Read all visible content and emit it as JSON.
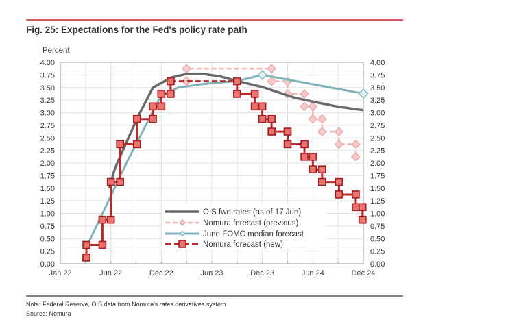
{
  "chart_data": {
    "type": "line",
    "title": "Fig. 25: Expectations for the Fed's policy rate path",
    "ylabel": "Percent",
    "xlabel": "",
    "x_unit": "months since Jan 22",
    "xlim": [
      0,
      36
    ],
    "ylim": [
      0,
      4
    ],
    "x_ticks": [
      {
        "x": 0,
        "label": "Jan 22"
      },
      {
        "x": 6,
        "label": "Jun 22"
      },
      {
        "x": 12,
        "label": "Dec 22"
      },
      {
        "x": 18,
        "label": "Jun 23"
      },
      {
        "x": 24,
        "label": "Dec 23"
      },
      {
        "x": 30,
        "label": "Jun 24"
      },
      {
        "x": 36,
        "label": "Dec 24"
      }
    ],
    "y_ticks": [
      "0.00",
      "0.25",
      "0.50",
      "0.75",
      "1.00",
      "1.25",
      "1.50",
      "1.75",
      "2.00",
      "2.25",
      "2.50",
      "2.75",
      "3.00",
      "3.25",
      "3.50",
      "3.75",
      "4.00"
    ],
    "grid": true,
    "legend_position": "lower-center",
    "series": [
      {
        "name": "OIS fwd rates (as of 17 Jun)",
        "style": "solid-line",
        "color": "#6b6b6b",
        "points": [
          [
            5.8,
            1.5
          ],
          [
            6.5,
            1.9
          ],
          [
            9.1,
            2.88
          ],
          [
            11,
            3.5
          ],
          [
            13.2,
            3.7
          ],
          [
            15,
            3.77
          ],
          [
            17,
            3.77
          ],
          [
            19,
            3.72
          ],
          [
            21,
            3.63
          ],
          [
            24,
            3.51
          ],
          [
            27.8,
            3.3
          ],
          [
            30,
            3.22
          ],
          [
            33,
            3.12
          ],
          [
            36,
            3.05
          ]
        ]
      },
      {
        "name": "Nomura forecast (previous)",
        "style": "dashed-step-diamond",
        "color": "#f0b4b4",
        "start": [
          15,
          3.625
        ],
        "steps": [
          [
            15,
            3.875
          ],
          [
            25.1,
            3.625
          ],
          [
            27,
            3.375
          ],
          [
            29,
            3.125
          ],
          [
            30,
            2.875
          ],
          [
            31.1,
            2.625
          ],
          [
            33.1,
            2.375
          ],
          [
            35.1,
            2.125
          ]
        ]
      },
      {
        "name": "June FOMC median forecast",
        "style": "solid-line-diamond",
        "color": "#7fb3b8",
        "points": [
          [
            3.3,
            0.4
          ],
          [
            8,
            2.05
          ],
          [
            12,
            3.35
          ],
          [
            14,
            3.5
          ],
          [
            17,
            3.57
          ],
          [
            21,
            3.63
          ],
          [
            24,
            3.75
          ],
          [
            36,
            3.38
          ]
        ],
        "markers": [
          [
            24,
            3.75
          ],
          [
            36,
            3.38
          ]
        ]
      },
      {
        "name": "Nomura forecast (new)",
        "style": "dashed-step-square",
        "color": "#c0272d",
        "start": [
          3.1,
          0.125
        ],
        "steps": [
          [
            3.1,
            0.375
          ],
          [
            5,
            0.875
          ],
          [
            6,
            1.625
          ],
          [
            7.1,
            2.375
          ],
          [
            9.1,
            2.875
          ],
          [
            11,
            3.125
          ],
          [
            12,
            3.375
          ],
          [
            13.1,
            3.625
          ],
          [
            21,
            3.375
          ],
          [
            23.1,
            3.125
          ],
          [
            24,
            2.875
          ],
          [
            25.1,
            2.625
          ],
          [
            27,
            2.375
          ],
          [
            29,
            2.125
          ],
          [
            30,
            1.875
          ],
          [
            31.1,
            1.625
          ],
          [
            33.1,
            1.375
          ],
          [
            35.1,
            1.125
          ],
          [
            35.9,
            0.875
          ]
        ]
      }
    ]
  },
  "footer": {
    "note": "Note: Federal Reserve, OIS data from Nomura's rates derivatives system",
    "source": "Source: Nomura"
  },
  "colors": {
    "rule_top": "#c0272d",
    "rule_bottom": "#333333"
  }
}
